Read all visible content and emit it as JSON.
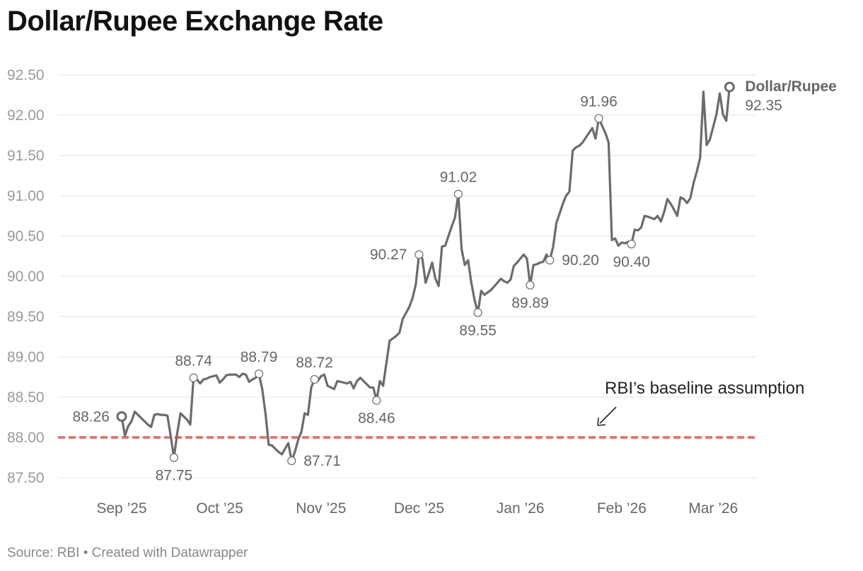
{
  "header": {
    "title": "Dollar/Rupee Exchange Rate"
  },
  "footer": {
    "source": "Source: RBI",
    "separator": " • ",
    "credit": "Created with Datawrapper"
  },
  "chart_data": {
    "type": "line",
    "title": "Dollar/Rupee Exchange Rate",
    "xlabel": "",
    "ylabel": "",
    "ylim": [
      87.5,
      92.5
    ],
    "grid": true,
    "y_ticks": [
      "92.50",
      "92.00",
      "91.50",
      "91.00",
      "90.50",
      "90.00",
      "89.50",
      "89.00",
      "88.50",
      "88.00",
      "87.50"
    ],
    "x_ticks": [
      {
        "label": "Sep ’25",
        "day": 0
      },
      {
        "label": "Oct ’25",
        "day": 30
      },
      {
        "label": "Nov ’25",
        "day": 61
      },
      {
        "label": "Dec ’25",
        "day": 91
      },
      {
        "label": "Jan ’26",
        "day": 122
      },
      {
        "label": "Feb ’26",
        "day": 153
      },
      {
        "label": "Mar ’26",
        "day": 181
      }
    ],
    "series": [
      {
        "name": "Dollar/Rupee",
        "last_value_label": "92.35",
        "color": "#6b6b6b",
        "points": [
          [
            0,
            88.26
          ],
          [
            1,
            88.02
          ],
          [
            2,
            88.14
          ],
          [
            3,
            88.2
          ],
          [
            4,
            88.32
          ],
          [
            5,
            88.28
          ],
          [
            6,
            88.24
          ],
          [
            8,
            88.16
          ],
          [
            9,
            88.13
          ],
          [
            10,
            88.28
          ],
          [
            11,
            88.29
          ],
          [
            12,
            88.28
          ],
          [
            13,
            88.28
          ],
          [
            14,
            88.27
          ],
          [
            15,
            88.02
          ],
          [
            16,
            87.75
          ],
          [
            17,
            88.05
          ],
          [
            18,
            88.3
          ],
          [
            19,
            88.26
          ],
          [
            20,
            88.22
          ],
          [
            21,
            88.16
          ],
          [
            22,
            88.74
          ],
          [
            23,
            88.72
          ],
          [
            24,
            88.67
          ],
          [
            25,
            88.72
          ],
          [
            26,
            88.73
          ],
          [
            27,
            88.75
          ],
          [
            28,
            88.76
          ],
          [
            29,
            88.77
          ],
          [
            30,
            88.68
          ],
          [
            31,
            88.72
          ],
          [
            32,
            88.77
          ],
          [
            33,
            88.78
          ],
          [
            34,
            88.78
          ],
          [
            35,
            88.78
          ],
          [
            36,
            88.75
          ],
          [
            37,
            88.79
          ],
          [
            38,
            88.78
          ],
          [
            39,
            88.69
          ],
          [
            40,
            88.72
          ],
          [
            41,
            88.74
          ],
          [
            42,
            88.79
          ],
          [
            43,
            88.6
          ],
          [
            44,
            88.3
          ],
          [
            45,
            87.91
          ],
          [
            46,
            87.9
          ],
          [
            47,
            87.86
          ],
          [
            48,
            87.82
          ],
          [
            49,
            87.79
          ],
          [
            50,
            87.86
          ],
          [
            51,
            87.93
          ],
          [
            52,
            87.71
          ],
          [
            53,
            87.82
          ],
          [
            54,
            87.97
          ],
          [
            55,
            88.07
          ],
          [
            56,
            88.3
          ],
          [
            57,
            88.28
          ],
          [
            58,
            88.62
          ],
          [
            59,
            88.72
          ],
          [
            60,
            88.7
          ],
          [
            61,
            88.76
          ],
          [
            62,
            88.78
          ],
          [
            63,
            88.64
          ],
          [
            64,
            88.62
          ],
          [
            65,
            88.6
          ],
          [
            66,
            88.7
          ],
          [
            67,
            88.69
          ],
          [
            68,
            88.68
          ],
          [
            69,
            88.67
          ],
          [
            70,
            88.69
          ],
          [
            71,
            88.61
          ],
          [
            72,
            88.7
          ],
          [
            73,
            88.74
          ],
          [
            74,
            88.7
          ],
          [
            75,
            88.66
          ],
          [
            76,
            88.62
          ],
          [
            77,
            88.62
          ],
          [
            78,
            88.46
          ],
          [
            79,
            88.7
          ],
          [
            80,
            88.64
          ],
          [
            82,
            89.2
          ],
          [
            84,
            89.26
          ],
          [
            85,
            89.3
          ],
          [
            86,
            89.47
          ],
          [
            88,
            89.62
          ],
          [
            89,
            89.73
          ],
          [
            90,
            89.9
          ],
          [
            91,
            90.27
          ],
          [
            92,
            90.22
          ],
          [
            93,
            89.92
          ],
          [
            94,
            90.04
          ],
          [
            95,
            90.17
          ],
          [
            96,
            89.97
          ],
          [
            97,
            89.88
          ],
          [
            98,
            90.37
          ],
          [
            99,
            90.38
          ],
          [
            100,
            90.5
          ],
          [
            101,
            90.62
          ],
          [
            102,
            90.73
          ],
          [
            103,
            91.02
          ],
          [
            104,
            90.34
          ],
          [
            105,
            90.14
          ],
          [
            106,
            90.2
          ],
          [
            107,
            89.92
          ],
          [
            108,
            89.7
          ],
          [
            109,
            89.55
          ],
          [
            110,
            89.82
          ],
          [
            111,
            89.77
          ],
          [
            112,
            89.8
          ],
          [
            113,
            89.83
          ],
          [
            115,
            89.92
          ],
          [
            116,
            89.97
          ],
          [
            117,
            89.94
          ],
          [
            118,
            89.92
          ],
          [
            119,
            89.96
          ],
          [
            120,
            90.13
          ],
          [
            121,
            90.17
          ],
          [
            123,
            90.27
          ],
          [
            124,
            90.22
          ],
          [
            125,
            89.89
          ],
          [
            126,
            90.14
          ],
          [
            127,
            90.15
          ],
          [
            128,
            90.17
          ],
          [
            129,
            90.18
          ],
          [
            130,
            90.27
          ],
          [
            131,
            90.2
          ],
          [
            132,
            90.36
          ],
          [
            133,
            90.66
          ],
          [
            134,
            90.78
          ],
          [
            135,
            90.9
          ],
          [
            136,
            91.0
          ],
          [
            137,
            91.05
          ],
          [
            138,
            91.56
          ],
          [
            139,
            91.6
          ],
          [
            140,
            91.62
          ],
          [
            141,
            91.66
          ],
          [
            142,
            91.72
          ],
          [
            144,
            91.84
          ],
          [
            145,
            91.71
          ],
          [
            146,
            91.96
          ],
          [
            148,
            91.78
          ],
          [
            149,
            91.66
          ],
          [
            150,
            90.45
          ],
          [
            151,
            90.47
          ],
          [
            152,
            90.38
          ],
          [
            153,
            90.42
          ],
          [
            154,
            90.41
          ],
          [
            155,
            90.43
          ],
          [
            156,
            90.4
          ],
          [
            157,
            90.58
          ],
          [
            158,
            90.57
          ],
          [
            159,
            90.61
          ],
          [
            160,
            90.75
          ],
          [
            161,
            90.74
          ],
          [
            163,
            90.71
          ],
          [
            164,
            90.75
          ],
          [
            165,
            90.68
          ],
          [
            166,
            90.8
          ],
          [
            167,
            90.96
          ],
          [
            168,
            90.9
          ],
          [
            169,
            90.83
          ],
          [
            170,
            90.75
          ],
          [
            171,
            90.98
          ],
          [
            172,
            90.96
          ],
          [
            173,
            90.91
          ],
          [
            174,
            90.97
          ],
          [
            175,
            91.16
          ],
          [
            176,
            91.3
          ],
          [
            177,
            91.47
          ],
          [
            178,
            92.29
          ],
          [
            179,
            91.63
          ],
          [
            180,
            91.7
          ],
          [
            182,
            92.01
          ],
          [
            183,
            92.27
          ],
          [
            184,
            92.01
          ],
          [
            185,
            91.93
          ],
          [
            186,
            92.35
          ]
        ]
      }
    ],
    "data_labels": [
      {
        "day": 0,
        "value": 88.26,
        "text": "88.26",
        "position": "left"
      },
      {
        "day": 16,
        "value": 87.75,
        "text": "87.75",
        "position": "below"
      },
      {
        "day": 22,
        "value": 88.74,
        "text": "88.74",
        "position": "above"
      },
      {
        "day": 42,
        "value": 88.79,
        "text": "88.79",
        "position": "above"
      },
      {
        "day": 52,
        "value": 87.71,
        "text": "87.71",
        "position": "right"
      },
      {
        "day": 59,
        "value": 88.72,
        "text": "88.72",
        "position": "above"
      },
      {
        "day": 78,
        "value": 88.46,
        "text": "88.46",
        "position": "below"
      },
      {
        "day": 91,
        "value": 90.27,
        "text": "90.27",
        "position": "left"
      },
      {
        "day": 103,
        "value": 91.02,
        "text": "91.02",
        "position": "above"
      },
      {
        "day": 109,
        "value": 89.55,
        "text": "89.55",
        "position": "below"
      },
      {
        "day": 125,
        "value": 89.89,
        "text": "89.89",
        "position": "below"
      },
      {
        "day": 131,
        "value": 90.2,
        "text": "90.20",
        "position": "right"
      },
      {
        "day": 146,
        "value": 91.96,
        "text": "91.96",
        "position": "above"
      },
      {
        "day": 156,
        "value": 90.4,
        "text": "90.40",
        "position": "below"
      }
    ],
    "reference_line": {
      "value": 88.0,
      "label": "RBI’s baseline assumption",
      "color": "#e07a7a",
      "style": "dashed"
    }
  }
}
